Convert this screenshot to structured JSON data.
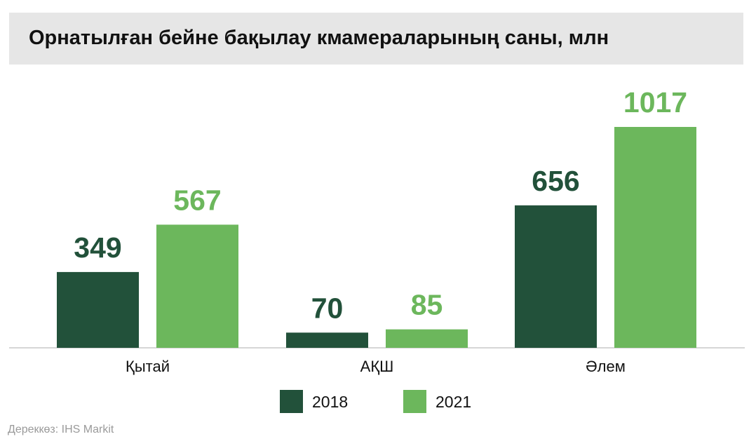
{
  "title": "Орнатылған бейне бақылау кмамераларының саны, млн",
  "source": "Дереккөз: IHS Markit",
  "colors": {
    "series_2018": "#22513a",
    "series_2021": "#6cb75c",
    "title_bg": "#e6e6e6",
    "axis": "#c8c8c8"
  },
  "chart_data": {
    "type": "bar",
    "categories": [
      "Қытай",
      "АҚШ",
      "Әлем"
    ],
    "series": [
      {
        "name": "2018",
        "values": [
          349,
          70,
          656
        ]
      },
      {
        "name": "2021",
        "values": [
          567,
          85,
          1017
        ]
      }
    ],
    "legend_position": "bottom-center",
    "grid": false,
    "ylim": [
      0,
      1017
    ]
  }
}
